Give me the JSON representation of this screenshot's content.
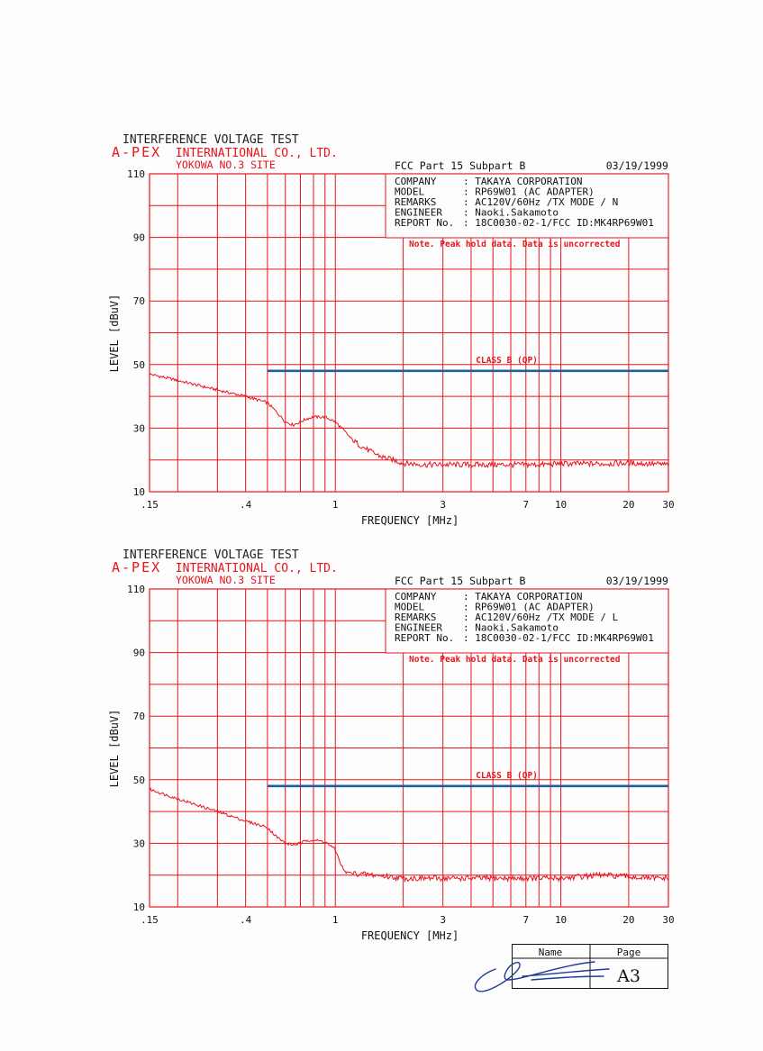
{
  "colors": {
    "grid": "#e8141c",
    "trace": "#e8141c",
    "limit": "#1f5fa0",
    "text": "#111111"
  },
  "chart_data": [
    {
      "type": "line",
      "header": {
        "test_title": "INTERFERENCE VOLTAGE TEST",
        "company_brand": "A-PEX",
        "company_rest": "INTERNATIONAL CO., LTD.",
        "site": "YOKOWA NO.3 SITE",
        "standard": "FCC Part 15 Subpart B",
        "date": "03/19/1999"
      },
      "info": [
        {
          "key": "COMPANY",
          "value": ": TAKAYA CORPORATION"
        },
        {
          "key": "MODEL",
          "value": ": RP69W01 (AC ADAPTER)"
        },
        {
          "key": "REMARKS",
          "value": ": AC120V/60Hz /TX MODE / N"
        },
        {
          "key": "ENGINEER",
          "value": ": Naoki.Sakamoto"
        },
        {
          "key": "REPORT No.",
          "value": ": 18C0030-02-1/FCC ID:MK4RP69W01"
        }
      ],
      "note": "Note. Peak hold data. Data is uncorrected",
      "limit_label": "CLASS B (QP)",
      "limit": {
        "x_start": 0.5,
        "x_end": 30,
        "y": 48
      },
      "xlabel": "FREQUENCY [MHz]",
      "ylabel": "LEVEL [dBuV]",
      "x_scale": "log",
      "xlim": [
        0.15,
        30
      ],
      "ylim": [
        10,
        110
      ],
      "x_ticks": [
        ".15",
        ".4",
        "1",
        "3",
        "7",
        "10",
        "20",
        "30"
      ],
      "x_tick_values": [
        0.15,
        0.4,
        1,
        3,
        7,
        10,
        20,
        30
      ],
      "y_ticks": [
        "10",
        "30",
        "50",
        "70",
        "90",
        "110"
      ],
      "y_tick_values": [
        10,
        30,
        50,
        70,
        90,
        110
      ],
      "series": [
        {
          "x": [
            0.15,
            0.2,
            0.3,
            0.4,
            0.5,
            0.55,
            0.6,
            0.65,
            0.7,
            0.75,
            0.8,
            0.9,
            1.0,
            1.1,
            1.2,
            1.4,
            1.6,
            1.8,
            2,
            2.5,
            3,
            4,
            5,
            6,
            7,
            8,
            10,
            15,
            20,
            25,
            30
          ],
          "y": [
            47,
            45,
            42,
            40,
            38,
            35,
            32,
            31,
            32,
            33,
            33.5,
            33.5,
            32,
            29,
            26,
            23,
            21,
            20,
            19,
            18.5,
            18.5,
            18.5,
            18.5,
            18.5,
            18.5,
            18.5,
            18.8,
            18.8,
            19,
            18.8,
            18.5
          ]
        }
      ]
    },
    {
      "type": "line",
      "header": {
        "test_title": "INTERFERENCE VOLTAGE TEST",
        "company_brand": "A-PEX",
        "company_rest": "INTERNATIONAL CO., LTD.",
        "site": "YOKOWA NO.3 SITE",
        "standard": "FCC Part 15 Subpart B",
        "date": "03/19/1999"
      },
      "info": [
        {
          "key": "COMPANY",
          "value": ": TAKAYA CORPORATION"
        },
        {
          "key": "MODEL",
          "value": ": RP69W01 (AC ADAPTER)"
        },
        {
          "key": "REMARKS",
          "value": ": AC120V/60Hz /TX MODE / L"
        },
        {
          "key": "ENGINEER",
          "value": ": Naoki.Sakamoto"
        },
        {
          "key": "REPORT No.",
          "value": ": 18C0030-02-1/FCC ID:MK4RP69W01"
        }
      ],
      "note": "Note. Peak hold data. Data is uncorrected",
      "limit_label": "CLASS B (QP)",
      "limit": {
        "x_start": 0.5,
        "x_end": 30,
        "y": 48
      },
      "xlabel": "FREQUENCY [MHz]",
      "ylabel": "LEVEL [dBuV]",
      "x_scale": "log",
      "xlim": [
        0.15,
        30
      ],
      "ylim": [
        10,
        110
      ],
      "x_ticks": [
        ".15",
        ".4",
        "1",
        "3",
        "7",
        "10",
        "20",
        "30"
      ],
      "x_tick_values": [
        0.15,
        0.4,
        1,
        3,
        7,
        10,
        20,
        30
      ],
      "y_ticks": [
        "10",
        "30",
        "50",
        "70",
        "90",
        "110"
      ],
      "y_tick_values": [
        10,
        30,
        50,
        70,
        90,
        110
      ],
      "series": [
        {
          "x": [
            0.15,
            0.2,
            0.3,
            0.4,
            0.5,
            0.55,
            0.6,
            0.65,
            0.7,
            0.75,
            0.8,
            0.9,
            1.0,
            1.05,
            1.1,
            1.2,
            1.5,
            2,
            3,
            4,
            5,
            6,
            7,
            8,
            10,
            12,
            15,
            20,
            25,
            30
          ],
          "y": [
            47,
            44,
            40,
            37,
            35,
            32,
            30,
            29.5,
            30,
            31,
            31,
            30.5,
            28,
            24,
            21,
            20.5,
            20,
            19,
            19,
            19,
            19,
            19,
            19,
            19,
            19,
            19.5,
            20,
            19.5,
            19,
            19
          ]
        }
      ]
    }
  ],
  "signature_box": {
    "name_label": "Name",
    "page_label": "Page",
    "page_value": "A3"
  }
}
